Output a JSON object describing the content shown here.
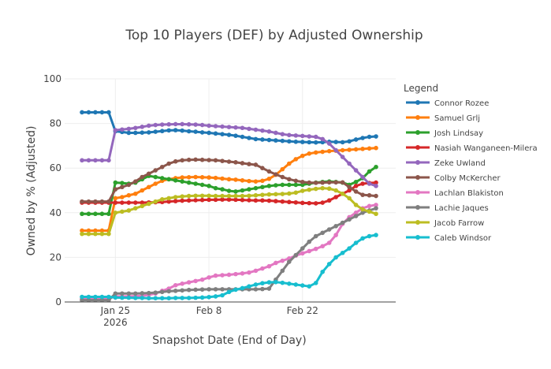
{
  "chart_data": {
    "type": "line",
    "title": "Top 10 Players (DEF) by Adjusted Ownership",
    "xlabel": "Snapshot Date (End of Day)",
    "ylabel": "Owned by % (Adjusted)",
    "ylim": [
      0,
      100
    ],
    "yticks": [
      0,
      20,
      40,
      60,
      80,
      100
    ],
    "xticks": [
      {
        "value": "2026-01-25",
        "label": "Jan 25",
        "sublabel": "2026"
      },
      {
        "value": "2026-02-08",
        "label": "Feb 8",
        "sublabel": ""
      },
      {
        "value": "2026-02-22",
        "label": "Feb 22",
        "sublabel": ""
      }
    ],
    "x": [
      "2026-01-20",
      "2026-01-21",
      "2026-01-22",
      "2026-01-23",
      "2026-01-24",
      "2026-01-25",
      "2026-01-26",
      "2026-01-27",
      "2026-01-28",
      "2026-01-29",
      "2026-01-30",
      "2026-01-31",
      "2026-02-01",
      "2026-02-02",
      "2026-02-03",
      "2026-02-04",
      "2026-02-05",
      "2026-02-06",
      "2026-02-07",
      "2026-02-08",
      "2026-02-09",
      "2026-02-10",
      "2026-02-11",
      "2026-02-12",
      "2026-02-13",
      "2026-02-14",
      "2026-02-15",
      "2026-02-16",
      "2026-02-17",
      "2026-02-18",
      "2026-02-19",
      "2026-02-20",
      "2026-02-21",
      "2026-02-22",
      "2026-02-23",
      "2026-02-24",
      "2026-02-25",
      "2026-02-26",
      "2026-02-27",
      "2026-02-28",
      "2026-03-01",
      "2026-03-02",
      "2026-03-03",
      "2026-03-04",
      "2026-03-05"
    ],
    "legend_title": "Legend",
    "legend_position": "right",
    "grid": true,
    "series": [
      {
        "name": "Connor Rozee",
        "color": "#1f77b4",
        "values": [
          85,
          85,
          85,
          85,
          85,
          76.5,
          76.2,
          75.8,
          75.8,
          75.9,
          76.0,
          76.3,
          76.6,
          76.9,
          77.0,
          76.8,
          76.5,
          76.3,
          76.0,
          75.8,
          75.5,
          75.2,
          74.9,
          74.5,
          74.0,
          73.5,
          73.0,
          72.8,
          72.6,
          72.4,
          72.2,
          72.0,
          71.8,
          71.7,
          71.6,
          71.5,
          71.6,
          71.8,
          71.7,
          71.6,
          72.0,
          72.8,
          73.5,
          74.0,
          74.2
        ]
      },
      {
        "name": "Samuel Grlj",
        "color": "#ff7f0e",
        "values": [
          32,
          32,
          32,
          32,
          32,
          46.5,
          47.0,
          47.8,
          48.5,
          50.0,
          51.5,
          53.0,
          54.3,
          55.0,
          55.5,
          55.8,
          55.9,
          56.0,
          55.9,
          55.8,
          55.6,
          55.3,
          55.0,
          54.8,
          54.5,
          54.2,
          54.0,
          54.3,
          55.2,
          57.0,
          59.5,
          62.0,
          64.0,
          65.5,
          66.5,
          67.0,
          67.3,
          67.6,
          67.8,
          68.0,
          68.2,
          68.4,
          68.6,
          68.8,
          69.0
        ]
      },
      {
        "name": "Josh Lindsay",
        "color": "#2ca02c",
        "values": [
          39.5,
          39.5,
          39.5,
          39.5,
          39.5,
          53.5,
          53.3,
          53.0,
          53.5,
          55.0,
          56.5,
          56.0,
          55.5,
          55.0,
          54.5,
          54.0,
          53.5,
          53.0,
          52.5,
          52.0,
          51.0,
          50.5,
          49.8,
          49.5,
          50.0,
          50.5,
          51.0,
          51.5,
          52.0,
          52.3,
          52.5,
          52.5,
          52.5,
          52.5,
          53.0,
          53.5,
          53.8,
          54.0,
          53.8,
          53.5,
          52.5,
          53.8,
          55.5,
          58.5,
          60.5
        ]
      },
      {
        "name": "Nasiah Wanganeen-Milera",
        "color": "#d62728",
        "values": [
          44.5,
          44.5,
          44.5,
          44.5,
          44.5,
          44.5,
          44.5,
          44.5,
          44.5,
          44.5,
          44.6,
          44.7,
          44.8,
          45.0,
          45.2,
          45.4,
          45.5,
          45.6,
          45.7,
          45.8,
          45.8,
          45.9,
          45.9,
          45.8,
          45.7,
          45.6,
          45.5,
          45.5,
          45.4,
          45.2,
          45.0,
          44.8,
          44.6,
          44.4,
          44.3,
          44.2,
          44.5,
          45.5,
          47.0,
          48.5,
          50.0,
          52.0,
          53.0,
          53.3,
          53.5
        ]
      },
      {
        "name": "Zeke Uwland",
        "color": "#9467bd",
        "values": [
          63.5,
          63.5,
          63.5,
          63.5,
          63.5,
          77.0,
          77.3,
          77.6,
          78.0,
          78.5,
          79.0,
          79.3,
          79.5,
          79.6,
          79.7,
          79.7,
          79.6,
          79.5,
          79.3,
          79.0,
          78.8,
          78.6,
          78.4,
          78.2,
          78.0,
          77.6,
          77.2,
          76.8,
          76.4,
          75.8,
          75.2,
          74.8,
          74.6,
          74.4,
          74.2,
          74.0,
          73.0,
          71.0,
          68.0,
          65.0,
          62.0,
          59.0,
          56.0,
          53.0,
          52.0
        ]
      },
      {
        "name": "Colby McKercher",
        "color": "#8c564b",
        "values": [
          45,
          45,
          45,
          45,
          45,
          50.5,
          51.5,
          52.5,
          54.0,
          56.0,
          57.5,
          59.0,
          60.5,
          62.0,
          63.0,
          63.5,
          63.7,
          63.8,
          63.7,
          63.6,
          63.5,
          63.2,
          62.9,
          62.6,
          62.2,
          61.8,
          61.5,
          60.0,
          58.5,
          57.2,
          56.0,
          55.0,
          54.3,
          53.8,
          53.5,
          53.4,
          53.5,
          53.6,
          53.6,
          53.6,
          51.5,
          49.5,
          48.0,
          47.8,
          47.5
        ]
      },
      {
        "name": "Lachlan Blakiston",
        "color": "#e377c2",
        "values": [
          1.5,
          1.5,
          1.5,
          1.5,
          1.5,
          2.5,
          2.5,
          2.5,
          2.6,
          2.8,
          3.2,
          3.8,
          5.0,
          6.0,
          7.5,
          8.2,
          8.8,
          9.4,
          10.0,
          11.0,
          11.8,
          12.0,
          12.2,
          12.5,
          12.8,
          13.2,
          14.0,
          15.0,
          16.0,
          17.5,
          18.5,
          19.5,
          20.8,
          21.8,
          22.8,
          23.8,
          25.0,
          26.5,
          30.0,
          35.0,
          38.0,
          40.0,
          42.0,
          43.0,
          43.5
        ]
      },
      {
        "name": "Lachie Jaques",
        "color": "#7f7f7f",
        "values": [
          0.8,
          0.8,
          0.8,
          0.8,
          0.8,
          3.8,
          3.8,
          3.8,
          3.8,
          3.9,
          4.0,
          4.2,
          4.5,
          4.8,
          5.0,
          5.2,
          5.4,
          5.5,
          5.6,
          5.7,
          5.7,
          5.7,
          5.7,
          5.7,
          5.7,
          5.7,
          5.7,
          5.8,
          6.0,
          10.0,
          14.0,
          18.0,
          21.0,
          24.0,
          27.0,
          29.5,
          31.0,
          32.5,
          34.0,
          35.5,
          37.0,
          38.5,
          40.0,
          41.0,
          42.0
        ]
      },
      {
        "name": "Jacob Farrow",
        "color": "#bcbd22",
        "values": [
          30.5,
          30.5,
          30.5,
          30.5,
          30.5,
          40.0,
          40.5,
          41.0,
          42.0,
          43.0,
          44.0,
          45.0,
          46.0,
          46.5,
          47.0,
          47.3,
          47.5,
          47.6,
          47.6,
          47.6,
          47.5,
          47.5,
          47.5,
          47.5,
          47.5,
          47.6,
          47.8,
          48.0,
          48.2,
          48.3,
          48.4,
          48.6,
          49.0,
          49.8,
          50.3,
          50.7,
          51.0,
          50.8,
          50.0,
          48.5,
          46.5,
          43.5,
          41.5,
          40.5,
          39.5
        ]
      },
      {
        "name": "Caleb Windsor",
        "color": "#17becf",
        "values": [
          2.3,
          2.3,
          2.3,
          2.3,
          2.3,
          2.0,
          1.9,
          1.9,
          1.8,
          1.8,
          1.7,
          1.7,
          1.7,
          1.7,
          1.8,
          1.8,
          1.8,
          1.9,
          2.0,
          2.2,
          2.5,
          3.0,
          4.5,
          5.5,
          6.2,
          7.0,
          7.8,
          8.4,
          8.8,
          8.9,
          8.6,
          8.2,
          7.8,
          7.4,
          7.0,
          8.5,
          13.5,
          17.0,
          20.0,
          22.0,
          24.0,
          26.5,
          28.5,
          29.5,
          30.0
        ]
      }
    ]
  }
}
